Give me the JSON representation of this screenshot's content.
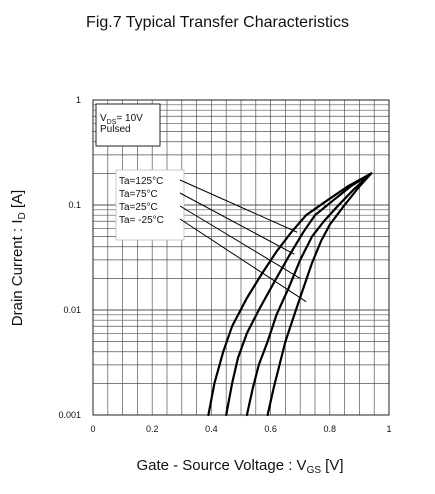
{
  "figure": {
    "title": "Fig.7 Typical Transfer Characteristics"
  },
  "chart_data": {
    "type": "line",
    "title": "Fig.7 Typical Transfer Characteristics",
    "xlabel": {
      "main": "Gate - Source Voltage : V",
      "sub": "GS",
      "unit": " [V]"
    },
    "ylabel": {
      "main": "Drain Current : I",
      "sub": "D",
      "unit": " [A]"
    },
    "xlim": [
      0,
      1
    ],
    "ylim": [
      0.001,
      1
    ],
    "yscale": "log",
    "x_ticks": [
      0,
      0.2,
      0.4,
      0.6,
      0.8,
      1
    ],
    "x_tick_labels": [
      "0",
      "0.2",
      "0.4",
      "0.6",
      "0.8",
      "1"
    ],
    "y_ticks": [
      0.001,
      0.01,
      0.1,
      1
    ],
    "y_tick_labels": [
      "0.001",
      "0.01",
      "0.1",
      "1"
    ],
    "grid": true,
    "condition_box": {
      "line1_main": "V",
      "line1_sub": "DS",
      "line1_rest": "= 10V",
      "line2": "Pulsed"
    },
    "series": [
      {
        "name": "Ta=125°C",
        "x": [
          0.39,
          0.41,
          0.44,
          0.47,
          0.52,
          0.57,
          0.62,
          0.67,
          0.72,
          0.79,
          0.86,
          0.94
        ],
        "y": [
          0.001,
          0.002,
          0.004,
          0.007,
          0.013,
          0.022,
          0.036,
          0.055,
          0.08,
          0.11,
          0.15,
          0.2
        ]
      },
      {
        "name": "Ta=75°C",
        "x": [
          0.45,
          0.47,
          0.49,
          0.52,
          0.56,
          0.61,
          0.66,
          0.71,
          0.75,
          0.81,
          0.87,
          0.94
        ],
        "y": [
          0.001,
          0.002,
          0.0035,
          0.006,
          0.01,
          0.018,
          0.032,
          0.055,
          0.08,
          0.11,
          0.15,
          0.2
        ]
      },
      {
        "name": "Ta=25°C",
        "x": [
          0.52,
          0.54,
          0.56,
          0.59,
          0.62,
          0.66,
          0.7,
          0.74,
          0.78,
          0.83,
          0.88,
          0.94
        ],
        "y": [
          0.001,
          0.0018,
          0.003,
          0.005,
          0.009,
          0.016,
          0.03,
          0.05,
          0.07,
          0.1,
          0.14,
          0.2
        ]
      },
      {
        "name": "Ta= -25°C",
        "x": [
          0.59,
          0.61,
          0.63,
          0.65,
          0.68,
          0.71,
          0.74,
          0.77,
          0.8,
          0.85,
          0.9,
          0.94
        ],
        "y": [
          0.001,
          0.0018,
          0.003,
          0.005,
          0.009,
          0.016,
          0.028,
          0.045,
          0.065,
          0.1,
          0.15,
          0.2
        ]
      }
    ],
    "series_color": "#000000",
    "grid_color": "#555555",
    "label_pointer_targets": [
      {
        "x": 0.69,
        "y": 0.055
      },
      {
        "x": 0.68,
        "y": 0.034
      },
      {
        "x": 0.7,
        "y": 0.02
      },
      {
        "x": 0.72,
        "y": 0.012
      }
    ]
  }
}
